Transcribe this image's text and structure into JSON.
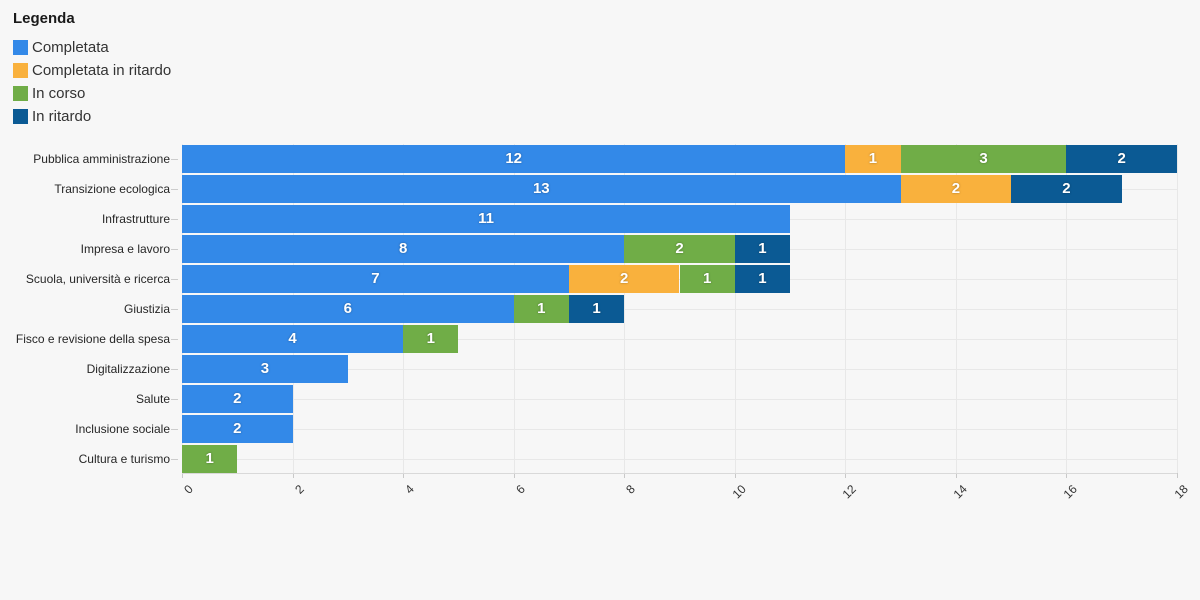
{
  "legend": {
    "title": "Legenda",
    "items": [
      {
        "label": "Completata",
        "color": "#3389e8"
      },
      {
        "label": "Completata in ritardo",
        "color": "#f9b13d"
      },
      {
        "label": "In corso",
        "color": "#70ad47"
      },
      {
        "label": "In ritardo",
        "color": "#0b5a94"
      }
    ]
  },
  "chart_data": {
    "type": "bar",
    "orientation": "horizontal",
    "stacked": true,
    "categories": [
      "Pubblica amministrazione",
      "Transizione ecologica",
      "Infrastrutture",
      "Impresa e lavoro",
      "Scuola, università e ricerca",
      "Giustizia",
      "Fisco e revisione della spesa",
      "Digitalizzazione",
      "Salute",
      "Inclusione sociale",
      "Cultura e turismo"
    ],
    "series": [
      {
        "name": "Completata",
        "color": "#3389e8",
        "values": [
          12,
          13,
          11,
          8,
          7,
          6,
          4,
          3,
          2,
          2,
          0
        ]
      },
      {
        "name": "Completata in ritardo",
        "color": "#f9b13d",
        "values": [
          1,
          2,
          0,
          0,
          2,
          0,
          0,
          0,
          0,
          0,
          0
        ]
      },
      {
        "name": "In corso",
        "color": "#70ad47",
        "values": [
          3,
          0,
          0,
          2,
          1,
          1,
          1,
          0,
          0,
          0,
          1
        ]
      },
      {
        "name": "In ritardo",
        "color": "#0b5a94",
        "values": [
          2,
          2,
          0,
          1,
          1,
          1,
          0,
          0,
          0,
          0,
          0
        ]
      }
    ],
    "totals": [
      18,
      17,
      11,
      11,
      11,
      8,
      5,
      3,
      2,
      2,
      1
    ],
    "xlim": [
      0,
      18
    ],
    "x_ticks": [
      0,
      2,
      4,
      6,
      8,
      10,
      12,
      14,
      16,
      18
    ],
    "grid": true,
    "legend_position": "top-left",
    "value_labels": "inside-center"
  },
  "colors": {
    "background": "#f7f7f7",
    "gridline": "#e8e8e8",
    "axis_line": "#d9d9d9",
    "tick": "#cccccc",
    "category_text": "#262626",
    "bar_label_text": "#ffffff"
  }
}
